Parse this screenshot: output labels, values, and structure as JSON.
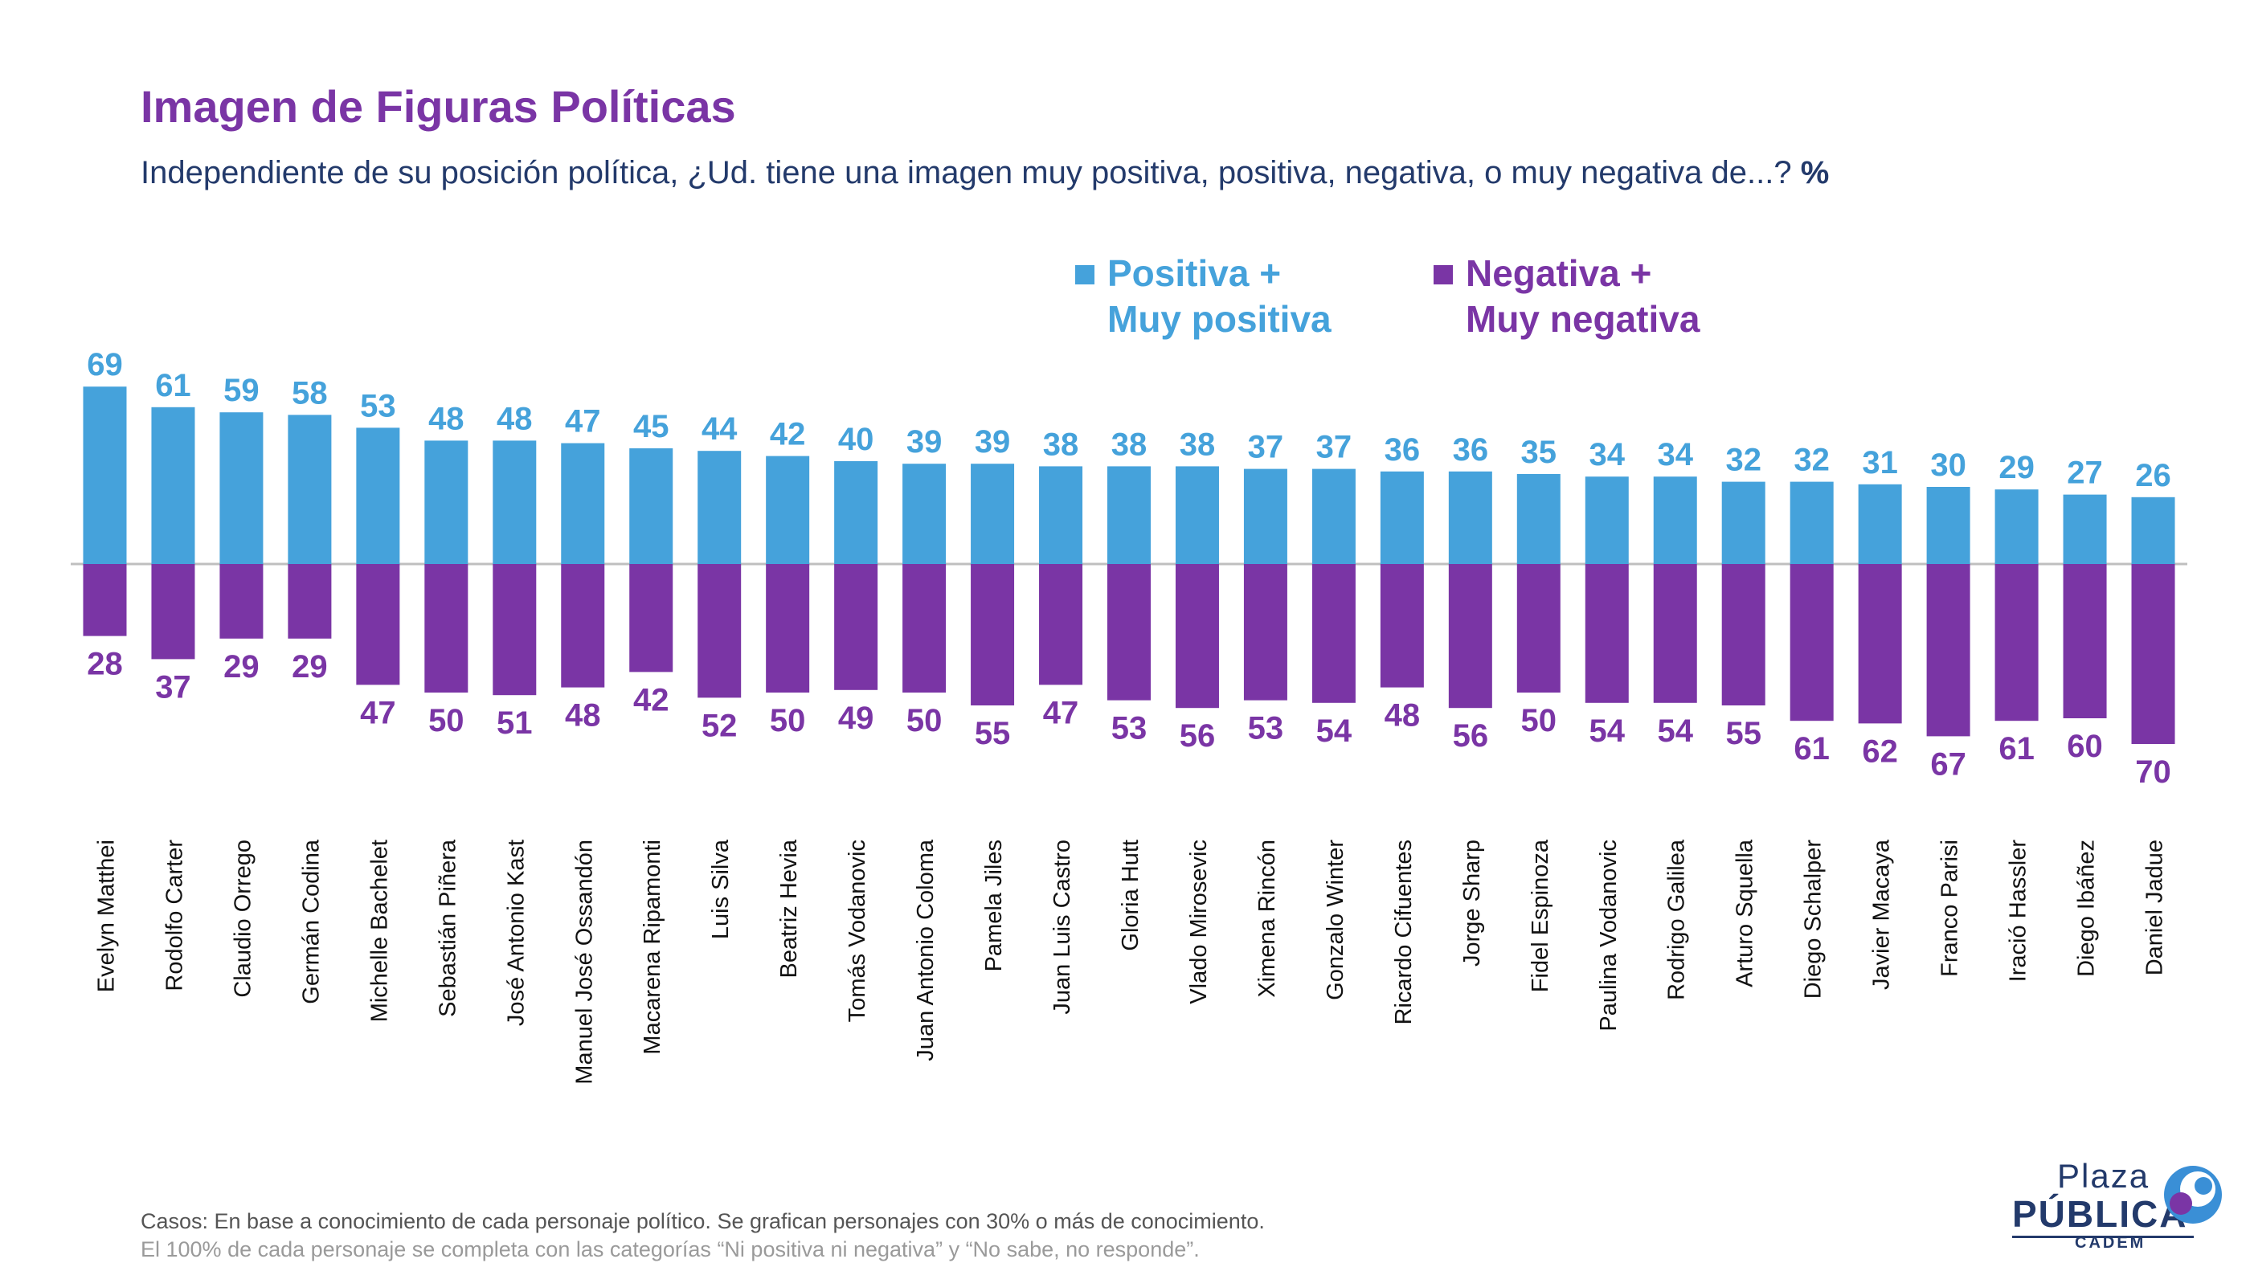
{
  "title": "Imagen de Figuras Políticas",
  "subtitle": "Independiente de su posición política, ¿Ud. tiene una imagen muy positiva, positiva, negativa, o muy negativa de...?",
  "subtitle_unit": "%",
  "legend": {
    "positive_line1": "Positiva +",
    "positive_line2": "Muy positiva",
    "negative_line1": "Negativa +",
    "negative_line2": "Muy negativa"
  },
  "colors": {
    "positive": "#45a2db",
    "negative": "#7a35a5",
    "title": "#7a35a5",
    "text": "#233a6b"
  },
  "chart_data": {
    "type": "bar",
    "orientation": "diverging-vertical",
    "categories": [
      "Evelyn Matthei",
      "Rodolfo Carter",
      "Claudio Orrego",
      "Germán Codina",
      "Michelle Bachelet",
      "Sebastián Piñera",
      "José Antonio Kast",
      "Manuel José Ossandón",
      "Macarena Ripamonti",
      "Luis Silva",
      "Beatriz Hevia",
      "Tomás Vodanovic",
      "Juan Antonio Coloma",
      "Pamela Jiles",
      "Juan Luis Castro",
      "Gloria Hutt",
      "Vlado Mirosevic",
      "Ximena Rincón",
      "Gonzalo Winter",
      "Ricardo Cifuentes",
      "Jorge Sharp",
      "Fidel Espinoza",
      "Paulina Vodanovic",
      "Rodrigo Galilea",
      "Arturo Squella",
      "Diego Schalper",
      "Javier Macaya",
      "Franco Parisi",
      "Iració Hassler",
      "Diego Ibáñez",
      "Daniel Jadue"
    ],
    "series": [
      {
        "name": "Positiva + Muy positiva",
        "values": [
          69,
          61,
          59,
          58,
          53,
          48,
          48,
          47,
          45,
          44,
          42,
          40,
          39,
          39,
          38,
          38,
          38,
          37,
          37,
          36,
          36,
          35,
          34,
          34,
          32,
          32,
          31,
          30,
          29,
          27,
          26
        ]
      },
      {
        "name": "Negativa + Muy negativa",
        "values": [
          28,
          37,
          29,
          29,
          47,
          50,
          51,
          48,
          42,
          52,
          50,
          49,
          50,
          55,
          47,
          53,
          56,
          53,
          54,
          48,
          56,
          50,
          54,
          54,
          55,
          61,
          62,
          67,
          61,
          60,
          70
        ]
      }
    ],
    "legend_position": "top-right",
    "grid": false
  },
  "footer": {
    "line1": "Casos: En base a conocimiento de cada personaje político. Se grafican personajes con 30% o más de conocimiento.",
    "line2": "El 100% de cada personaje se completa con las categorías “Ni positiva ni negativa” y “No sabe, no responde”."
  },
  "logo": {
    "line1": "Plaza",
    "line2": "PÚBLICA",
    "line3": "CADEM"
  }
}
